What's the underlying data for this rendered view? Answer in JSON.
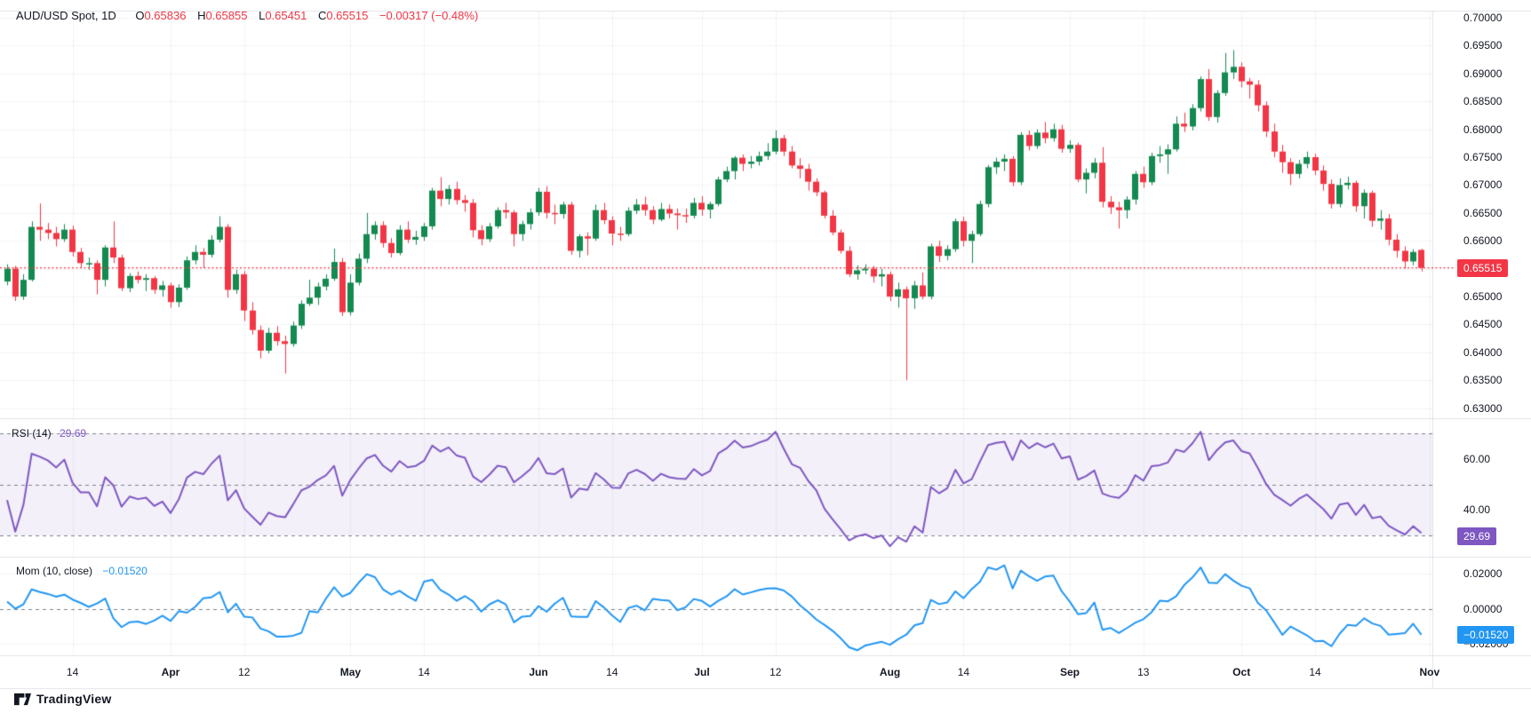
{
  "header": {
    "symbol": "AUD/USD Spot, 1D",
    "open_label": "O",
    "open": "0.65836",
    "high_label": "H",
    "high": "0.65855",
    "low_label": "L",
    "low": "0.65451",
    "close_label": "C",
    "close": "0.65515",
    "change": "−0.00317 (−0.48%)"
  },
  "colors": {
    "up": "#138a50",
    "down": "#f23645",
    "rsi_line": "#7e57c2",
    "rsi_band_fill": "rgba(126,87,194,0.09)",
    "mom_line": "#2196f3",
    "grid": "rgba(42,46,57,0.06)",
    "separator": "#e0e3eb",
    "dashed_level": "#7e838e",
    "last_price": "#f23645",
    "price_badge_bg": "#f23645",
    "rsi_badge_bg": "#7e57c2",
    "mom_badge_bg": "#2196f3",
    "text": "#131722"
  },
  "price_scale": {
    "ticks": [
      {
        "label": "0.70000",
        "value": 0.7
      },
      {
        "label": "0.69500",
        "value": 0.695
      },
      {
        "label": "0.69000",
        "value": 0.69
      },
      {
        "label": "0.68500",
        "value": 0.685
      },
      {
        "label": "0.68000",
        "value": 0.68
      },
      {
        "label": "0.67500",
        "value": 0.675
      },
      {
        "label": "0.67000",
        "value": 0.67
      },
      {
        "label": "0.66500",
        "value": 0.665
      },
      {
        "label": "0.66000",
        "value": 0.66
      },
      {
        "label": "0.65000",
        "value": 0.65
      },
      {
        "label": "0.64500",
        "value": 0.645
      },
      {
        "label": "0.64000",
        "value": 0.64
      },
      {
        "label": "0.63500",
        "value": 0.635
      },
      {
        "label": "0.63000",
        "value": 0.63
      }
    ],
    "last_price_badge": "0.65515"
  },
  "rsi_pane": {
    "label": "RSI (14)",
    "value": "29.69",
    "badge": "29.69",
    "ticks": [
      {
        "label": "60.00",
        "value": 60
      },
      {
        "label": "40.00",
        "value": 40
      }
    ],
    "levels": [
      70,
      50,
      30
    ]
  },
  "mom_pane": {
    "label": "Mom (10, close)",
    "value": "−0.01520",
    "badge": "−0.01520",
    "ticks": [
      {
        "label": "0.02000",
        "value": 0.02
      },
      {
        "label": "0.00000",
        "value": 0.0
      },
      {
        "label": "−0.02000",
        "value": -0.02
      }
    ],
    "zero_level": 0
  },
  "time_scale": {
    "ticks": [
      {
        "i": 8,
        "label": "14",
        "bold": false
      },
      {
        "i": 20,
        "label": "Apr",
        "bold": true
      },
      {
        "i": 29,
        "label": "12",
        "bold": false
      },
      {
        "i": 42,
        "label": "May",
        "bold": true
      },
      {
        "i": 51,
        "label": "14",
        "bold": false
      },
      {
        "i": 65,
        "label": "Jun",
        "bold": true
      },
      {
        "i": 74,
        "label": "14",
        "bold": false
      },
      {
        "i": 85,
        "label": "Jul",
        "bold": true
      },
      {
        "i": 94,
        "label": "12",
        "bold": false
      },
      {
        "i": 108,
        "label": "Aug",
        "bold": true
      },
      {
        "i": 117,
        "label": "14",
        "bold": false
      },
      {
        "i": 130,
        "label": "Sep",
        "bold": true
      },
      {
        "i": 139,
        "label": "13",
        "bold": false
      },
      {
        "i": 151,
        "label": "Oct",
        "bold": true
      },
      {
        "i": 160,
        "label": "14",
        "bold": false
      },
      {
        "i": 174,
        "label": "Nov",
        "bold": true
      }
    ]
  },
  "footer": {
    "logo_text": "TradingView"
  },
  "chart_data": {
    "type": "candlestick",
    "title": "AUD/USD Spot, 1D",
    "ohlc_last": {
      "open": 0.65836,
      "high": 0.65855,
      "low": 0.65451,
      "close": 0.65515
    },
    "change": -0.00317,
    "change_pct": -0.48,
    "price_axis_range_shown": [
      0.63,
      0.7
    ],
    "indicators": [
      {
        "name": "RSI",
        "period": 14,
        "last": 29.69,
        "levels": [
          70,
          50,
          30
        ],
        "axis_ticks": [
          60,
          40
        ]
      },
      {
        "name": "Momentum",
        "period": 10,
        "source": "close",
        "last": -0.0152,
        "axis_ticks": [
          0.02,
          0,
          -0.02
        ]
      }
    ],
    "warmup_closes": [
      0.657,
      0.656,
      0.6548,
      0.6542,
      0.652,
      0.651,
      0.65,
      0.6505,
      0.6515,
      0.6525,
      0.653,
      0.6535,
      0.654,
      0.6528,
      0.6527
    ],
    "candles_ohlc": [
      [
        0.6527,
        0.6558,
        0.652,
        0.655
      ],
      [
        0.655,
        0.6555,
        0.6492,
        0.65
      ],
      [
        0.65,
        0.654,
        0.6494,
        0.653
      ],
      [
        0.653,
        0.6635,
        0.6527,
        0.6625
      ],
      [
        0.6625,
        0.6667,
        0.66,
        0.662
      ],
      [
        0.662,
        0.6632,
        0.6603,
        0.6614
      ],
      [
        0.6614,
        0.6625,
        0.659,
        0.6603
      ],
      [
        0.6603,
        0.663,
        0.6598,
        0.662
      ],
      [
        0.662,
        0.6627,
        0.6572,
        0.658
      ],
      [
        0.658,
        0.6587,
        0.6552,
        0.656
      ],
      [
        0.656,
        0.657,
        0.6548,
        0.656
      ],
      [
        0.656,
        0.6565,
        0.6504,
        0.653
      ],
      [
        0.653,
        0.6592,
        0.6518,
        0.6588
      ],
      [
        0.6588,
        0.6635,
        0.656,
        0.657
      ],
      [
        0.657,
        0.6575,
        0.651,
        0.6515
      ],
      [
        0.6515,
        0.6542,
        0.6508,
        0.6537
      ],
      [
        0.6537,
        0.6545,
        0.6524,
        0.653
      ],
      [
        0.653,
        0.654,
        0.651,
        0.6533
      ],
      [
        0.6533,
        0.6537,
        0.6505,
        0.6512
      ],
      [
        0.6512,
        0.6528,
        0.65,
        0.652
      ],
      [
        0.652,
        0.6525,
        0.648,
        0.649
      ],
      [
        0.649,
        0.6522,
        0.6481,
        0.6516
      ],
      [
        0.6516,
        0.6572,
        0.6512,
        0.6565
      ],
      [
        0.6565,
        0.6592,
        0.6558,
        0.658
      ],
      [
        0.658,
        0.6587,
        0.6551,
        0.6575
      ],
      [
        0.6575,
        0.661,
        0.657,
        0.6602
      ],
      [
        0.6602,
        0.6644,
        0.6597,
        0.6625
      ],
      [
        0.6625,
        0.663,
        0.6498,
        0.6512
      ],
      [
        0.6512,
        0.6548,
        0.6505,
        0.654
      ],
      [
        0.654,
        0.6546,
        0.6456,
        0.6475
      ],
      [
        0.6475,
        0.649,
        0.6432,
        0.644
      ],
      [
        0.644,
        0.6448,
        0.6389,
        0.6403
      ],
      [
        0.6403,
        0.6444,
        0.6398,
        0.6435
      ],
      [
        0.6435,
        0.6447,
        0.6412,
        0.642
      ],
      [
        0.642,
        0.643,
        0.6362,
        0.6415
      ],
      [
        0.6415,
        0.6455,
        0.641,
        0.6448
      ],
      [
        0.6448,
        0.6493,
        0.6442,
        0.6487
      ],
      [
        0.6487,
        0.653,
        0.6483,
        0.6498
      ],
      [
        0.6498,
        0.6525,
        0.6485,
        0.6518
      ],
      [
        0.6518,
        0.654,
        0.6511,
        0.6532
      ],
      [
        0.6532,
        0.6586,
        0.6528,
        0.6562
      ],
      [
        0.6562,
        0.6569,
        0.6465,
        0.6472
      ],
      [
        0.6472,
        0.654,
        0.6466,
        0.6525
      ],
      [
        0.6525,
        0.6577,
        0.652,
        0.6568
      ],
      [
        0.6568,
        0.665,
        0.656,
        0.6612
      ],
      [
        0.6612,
        0.6635,
        0.6602,
        0.6628
      ],
      [
        0.6628,
        0.6635,
        0.6588,
        0.6596
      ],
      [
        0.6596,
        0.6605,
        0.657,
        0.6578
      ],
      [
        0.6578,
        0.6628,
        0.6574,
        0.662
      ],
      [
        0.662,
        0.6635,
        0.6596,
        0.6602
      ],
      [
        0.6602,
        0.6618,
        0.6593,
        0.6607
      ],
      [
        0.6607,
        0.6632,
        0.66,
        0.6626
      ],
      [
        0.6626,
        0.6695,
        0.662,
        0.669
      ],
      [
        0.669,
        0.6714,
        0.6662,
        0.6675
      ],
      [
        0.6675,
        0.67,
        0.6665,
        0.6693
      ],
      [
        0.6693,
        0.6706,
        0.6665,
        0.6673
      ],
      [
        0.6673,
        0.6682,
        0.6652,
        0.6668
      ],
      [
        0.6668,
        0.6675,
        0.6606,
        0.6619
      ],
      [
        0.6619,
        0.6628,
        0.6592,
        0.6603
      ],
      [
        0.6603,
        0.6632,
        0.6598,
        0.6626
      ],
      [
        0.6626,
        0.666,
        0.6622,
        0.6655
      ],
      [
        0.6655,
        0.6668,
        0.664,
        0.6651
      ],
      [
        0.6651,
        0.6655,
        0.659,
        0.6612
      ],
      [
        0.6612,
        0.6636,
        0.66,
        0.663
      ],
      [
        0.663,
        0.6658,
        0.662,
        0.6651
      ],
      [
        0.6651,
        0.6695,
        0.6645,
        0.6688
      ],
      [
        0.6688,
        0.6698,
        0.664,
        0.665
      ],
      [
        0.665,
        0.6665,
        0.663,
        0.6648
      ],
      [
        0.6648,
        0.667,
        0.664,
        0.6665
      ],
      [
        0.6665,
        0.667,
        0.6575,
        0.6582
      ],
      [
        0.6582,
        0.6612,
        0.657,
        0.6608
      ],
      [
        0.6608,
        0.6615,
        0.6574,
        0.6604
      ],
      [
        0.6604,
        0.6665,
        0.66,
        0.6655
      ],
      [
        0.6655,
        0.6668,
        0.663,
        0.6637
      ],
      [
        0.6637,
        0.6644,
        0.6592,
        0.6613
      ],
      [
        0.6613,
        0.6625,
        0.66,
        0.6612
      ],
      [
        0.6612,
        0.666,
        0.6608,
        0.6654
      ],
      [
        0.6654,
        0.6675,
        0.6648,
        0.6665
      ],
      [
        0.6665,
        0.6679,
        0.6645,
        0.6655
      ],
      [
        0.6655,
        0.6662,
        0.663,
        0.6638
      ],
      [
        0.6638,
        0.6668,
        0.6635,
        0.6657
      ],
      [
        0.6657,
        0.6665,
        0.664,
        0.6649
      ],
      [
        0.6649,
        0.6658,
        0.662,
        0.6646
      ],
      [
        0.6646,
        0.6658,
        0.6632,
        0.6645
      ],
      [
        0.6645,
        0.6677,
        0.664,
        0.6668
      ],
      [
        0.6668,
        0.668,
        0.6645,
        0.6656
      ],
      [
        0.6656,
        0.667,
        0.664,
        0.6666
      ],
      [
        0.6666,
        0.6715,
        0.6662,
        0.671
      ],
      [
        0.671,
        0.6733,
        0.6705,
        0.6725
      ],
      [
        0.6725,
        0.6752,
        0.671,
        0.6749
      ],
      [
        0.6749,
        0.6755,
        0.6725,
        0.6738
      ],
      [
        0.6738,
        0.6752,
        0.673,
        0.6742
      ],
      [
        0.6742,
        0.676,
        0.6735,
        0.6752
      ],
      [
        0.6752,
        0.6775,
        0.6745,
        0.676
      ],
      [
        0.676,
        0.6798,
        0.6755,
        0.6784
      ],
      [
        0.6784,
        0.679,
        0.6752,
        0.676
      ],
      [
        0.676,
        0.677,
        0.673,
        0.6735
      ],
      [
        0.6735,
        0.6748,
        0.6712,
        0.6729
      ],
      [
        0.6729,
        0.6738,
        0.669,
        0.6706
      ],
      [
        0.6706,
        0.6712,
        0.668,
        0.6687
      ],
      [
        0.6687,
        0.669,
        0.664,
        0.6645
      ],
      [
        0.6645,
        0.6655,
        0.661,
        0.6615
      ],
      [
        0.6615,
        0.662,
        0.6577,
        0.6582
      ],
      [
        0.6582,
        0.659,
        0.6535,
        0.654
      ],
      [
        0.654,
        0.6556,
        0.653,
        0.6547
      ],
      [
        0.6547,
        0.6558,
        0.654,
        0.655
      ],
      [
        0.655,
        0.6555,
        0.6525,
        0.6536
      ],
      [
        0.6536,
        0.655,
        0.6518,
        0.654
      ],
      [
        0.654,
        0.6545,
        0.6492,
        0.65
      ],
      [
        0.65,
        0.6525,
        0.648,
        0.6513
      ],
      [
        0.6513,
        0.6518,
        0.635,
        0.6497
      ],
      [
        0.6497,
        0.6528,
        0.6478,
        0.652
      ],
      [
        0.652,
        0.6543,
        0.6495,
        0.65
      ],
      [
        0.65,
        0.6595,
        0.6495,
        0.659
      ],
      [
        0.659,
        0.66,
        0.6562,
        0.6573
      ],
      [
        0.6573,
        0.6592,
        0.6565,
        0.6585
      ],
      [
        0.6585,
        0.664,
        0.658,
        0.6635
      ],
      [
        0.6635,
        0.6643,
        0.659,
        0.66
      ],
      [
        0.66,
        0.6618,
        0.656,
        0.6612
      ],
      [
        0.6612,
        0.6672,
        0.6608,
        0.6666
      ],
      [
        0.6666,
        0.6736,
        0.666,
        0.6732
      ],
      [
        0.6732,
        0.6749,
        0.672,
        0.6742
      ],
      [
        0.6742,
        0.6755,
        0.6725,
        0.6747
      ],
      [
        0.6747,
        0.6752,
        0.6698,
        0.6705
      ],
      [
        0.6705,
        0.6795,
        0.67,
        0.679
      ],
      [
        0.679,
        0.6798,
        0.6762,
        0.677
      ],
      [
        0.677,
        0.68,
        0.6765,
        0.6794
      ],
      [
        0.6794,
        0.6813,
        0.6775,
        0.6784
      ],
      [
        0.6784,
        0.681,
        0.6778,
        0.68
      ],
      [
        0.68,
        0.6808,
        0.6758,
        0.6765
      ],
      [
        0.6765,
        0.678,
        0.6758,
        0.6772
      ],
      [
        0.6772,
        0.6776,
        0.6705,
        0.671
      ],
      [
        0.671,
        0.673,
        0.6685,
        0.6722
      ],
      [
        0.6722,
        0.6748,
        0.6712,
        0.674
      ],
      [
        0.674,
        0.6768,
        0.666,
        0.667
      ],
      [
        0.667,
        0.668,
        0.6648,
        0.666
      ],
      [
        0.666,
        0.667,
        0.6622,
        0.6655
      ],
      [
        0.6655,
        0.668,
        0.664,
        0.6674
      ],
      [
        0.6674,
        0.6725,
        0.6665,
        0.672
      ],
      [
        0.672,
        0.6733,
        0.6695,
        0.6705
      ],
      [
        0.6705,
        0.6758,
        0.67,
        0.6752
      ],
      [
        0.6752,
        0.677,
        0.674,
        0.6755
      ],
      [
        0.6755,
        0.6773,
        0.672,
        0.6764
      ],
      [
        0.6764,
        0.6823,
        0.676,
        0.681
      ],
      [
        0.681,
        0.683,
        0.6795,
        0.6805
      ],
      [
        0.6805,
        0.6845,
        0.6798,
        0.6838
      ],
      [
        0.6838,
        0.6895,
        0.6832,
        0.689
      ],
      [
        0.689,
        0.6908,
        0.6815,
        0.6822
      ],
      [
        0.6822,
        0.687,
        0.6812,
        0.6865
      ],
      [
        0.6865,
        0.6937,
        0.686,
        0.6902
      ],
      [
        0.6902,
        0.6942,
        0.689,
        0.6912
      ],
      [
        0.6912,
        0.692,
        0.6875,
        0.6886
      ],
      [
        0.6886,
        0.6892,
        0.6855,
        0.688
      ],
      [
        0.688,
        0.6888,
        0.6832,
        0.6843
      ],
      [
        0.6843,
        0.685,
        0.6786,
        0.6796
      ],
      [
        0.6796,
        0.681,
        0.675,
        0.676
      ],
      [
        0.676,
        0.6772,
        0.6722,
        0.6741
      ],
      [
        0.6741,
        0.6748,
        0.67,
        0.672
      ],
      [
        0.672,
        0.6745,
        0.6712,
        0.6738
      ],
      [
        0.6738,
        0.676,
        0.673,
        0.675
      ],
      [
        0.675,
        0.6756,
        0.6718,
        0.6726
      ],
      [
        0.6726,
        0.6735,
        0.669,
        0.6702
      ],
      [
        0.6702,
        0.671,
        0.6658,
        0.6666
      ],
      [
        0.6666,
        0.6712,
        0.666,
        0.67
      ],
      [
        0.67,
        0.6715,
        0.6692,
        0.6704
      ],
      [
        0.6704,
        0.6708,
        0.6652,
        0.6662
      ],
      [
        0.6662,
        0.6692,
        0.664,
        0.6686
      ],
      [
        0.6686,
        0.669,
        0.6625,
        0.6636
      ],
      [
        0.6636,
        0.6655,
        0.662,
        0.664
      ],
      [
        0.664,
        0.6648,
        0.6592,
        0.6602
      ],
      [
        0.6602,
        0.6612,
        0.657,
        0.6582
      ],
      [
        0.6582,
        0.659,
        0.655,
        0.6563
      ],
      [
        0.6563,
        0.6585,
        0.6556,
        0.658
      ],
      [
        0.65836,
        0.65855,
        0.65451,
        0.65515
      ]
    ]
  }
}
